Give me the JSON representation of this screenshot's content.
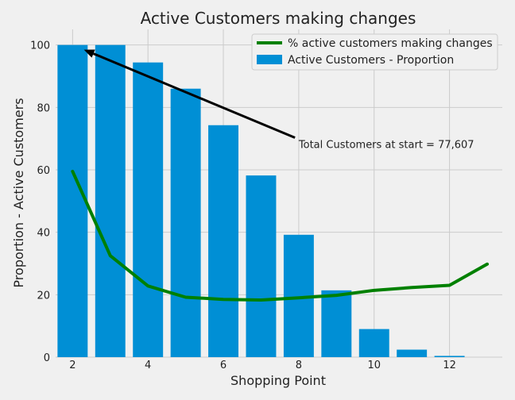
{
  "chart_data": {
    "type": "bar",
    "title": "Active Customers making changes",
    "xlabel": "Shopping Point",
    "ylabel": "Proportion -  Active Customers",
    "xlim": [
      1.55,
      13.4
    ],
    "ylim": [
      0,
      105
    ],
    "grid": true,
    "legend_position": "top-right",
    "x_ticks": [
      2,
      4,
      6,
      8,
      10,
      12
    ],
    "y_ticks": [
      0,
      20,
      40,
      60,
      80,
      100
    ],
    "series": [
      {
        "name": "% active customers making changes",
        "kind": "line",
        "color": "#008000",
        "x": [
          2,
          3,
          4,
          5,
          6,
          7,
          8,
          9,
          10,
          11,
          12,
          13
        ],
        "values": [
          59.5,
          32.5,
          22.8,
          19.2,
          18.5,
          18.3,
          19.0,
          19.8,
          21.4,
          22.3,
          23.0,
          29.8
        ]
      },
      {
        "name": "Active Customers - Proportion",
        "kind": "bar",
        "color": "#008fd5",
        "x": [
          2,
          3,
          4,
          5,
          6,
          7,
          8,
          9,
          10,
          11,
          12
        ],
        "values": [
          100,
          100,
          94.4,
          86.0,
          74.3,
          58.2,
          39.2,
          21.4,
          9.0,
          2.4,
          0.4
        ]
      }
    ],
    "annotations": [
      {
        "text": "Total Customers at start = 77,607",
        "x_data": 8.0,
        "y_data": 67,
        "arrow_to": [
          2.3,
          98.5
        ],
        "arrow_from": [
          7.9,
          70.3
        ]
      }
    ]
  },
  "colors": {
    "background": "#f0f0f0",
    "grid": "#cbcbcb",
    "text": "#222222",
    "arrow": "#000000"
  }
}
